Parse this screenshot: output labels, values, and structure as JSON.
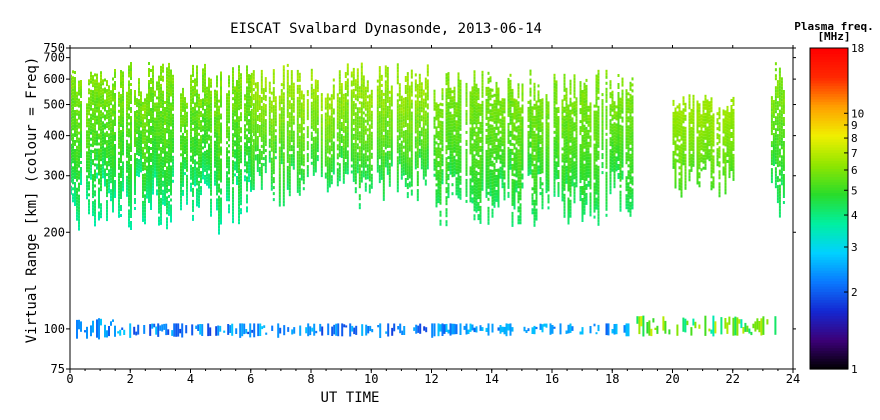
{
  "chart_data": {
    "type": "heatmap",
    "title": "EISCAT Svalbard Dynasonde, 2013-06-14",
    "xlabel": "UT TIME",
    "ylabel": "Virtual Range [km] (colour = Freq)",
    "xlim": [
      0,
      24
    ],
    "ylim": [
      75,
      750
    ],
    "y_scale": "log",
    "x_ticks": [
      "0",
      "2",
      "4",
      "6",
      "8",
      "10",
      "12",
      "14",
      "16",
      "18",
      "20",
      "22",
      "24"
    ],
    "y_ticks": [
      "75",
      "100",
      "200",
      "300",
      "400",
      "500",
      "600",
      "700",
      "750"
    ],
    "colorbar": {
      "title_line1": "Plasma freq.",
      "title_line2": "[MHz]",
      "scale": "log",
      "range": [
        1,
        18
      ],
      "ticks": [
        "1",
        "2",
        "3",
        "4",
        "5",
        "6",
        "7",
        "8",
        "9",
        "10",
        "18"
      ],
      "colormap": [
        "#000000",
        "#3c0078",
        "#1428d2",
        "#0a7aff",
        "#00d2ff",
        "#00f0a0",
        "#2adc2a",
        "#90e600",
        "#f0f000",
        "#ffa000",
        "#ff2800",
        "#ff0000"
      ]
    },
    "echo_regions": [
      {
        "layer": "F",
        "t_start": 0.0,
        "t_end": 6.0,
        "range_low": 200,
        "range_high": 680,
        "freq_low": 3.5,
        "freq_high": 6.0
      },
      {
        "layer": "F",
        "t_start": 6.0,
        "t_end": 12.0,
        "range_low": 240,
        "range_high": 680,
        "freq_low": 4.0,
        "freq_high": 6.5
      },
      {
        "layer": "F",
        "t_start": 12.0,
        "t_end": 18.8,
        "range_low": 210,
        "range_high": 650,
        "freq_low": 4.0,
        "freq_high": 6.0
      },
      {
        "layer": "F",
        "t_start": 20.0,
        "t_end": 22.0,
        "range_low": 260,
        "range_high": 560,
        "freq_low": 5.0,
        "freq_high": 6.5
      },
      {
        "layer": "F",
        "t_start": 23.2,
        "t_end": 23.7,
        "range_low": 220,
        "range_high": 680,
        "freq_low": 4.0,
        "freq_high": 6.0
      },
      {
        "layer": "E",
        "t_start": 0.0,
        "t_end": 1.5,
        "range_low": 93,
        "range_high": 108,
        "freq_low": 2.0,
        "freq_high": 2.8
      },
      {
        "layer": "E",
        "t_start": 1.5,
        "t_end": 12.0,
        "range_low": 95,
        "range_high": 104,
        "freq_low": 1.8,
        "freq_high": 2.8
      },
      {
        "layer": "E",
        "t_start": 12.0,
        "t_end": 18.7,
        "range_low": 96,
        "range_high": 104,
        "freq_low": 2.0,
        "freq_high": 2.8
      },
      {
        "layer": "E",
        "t_start": 18.8,
        "t_end": 23.7,
        "range_low": 95,
        "range_high": 110,
        "freq_low": 3.5,
        "freq_high": 8.0
      }
    ]
  }
}
